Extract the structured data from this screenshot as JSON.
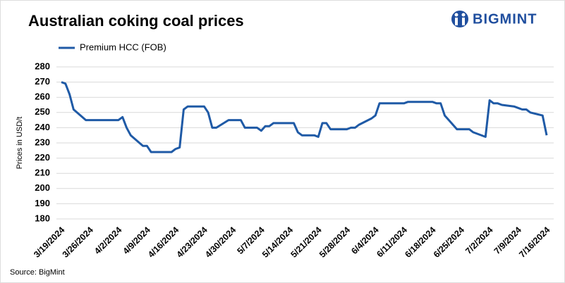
{
  "chart_data": {
    "type": "line",
    "title": "Australian coking coal prices",
    "logo": "BIGMINT",
    "y_label": "Prices in USD/t",
    "source": "Source: BigMint",
    "grid": true,
    "x": [
      "3/19/2024",
      "3/20/2024",
      "3/21/2024",
      "3/22/2024",
      "3/25/2024",
      "3/26/2024",
      "3/27/2024",
      "3/28/2024",
      "3/29/2024",
      "4/1/2024",
      "4/2/2024",
      "4/3/2024",
      "4/4/2024",
      "4/5/2024",
      "4/8/2024",
      "4/9/2024",
      "4/10/2024",
      "4/11/2024",
      "4/12/2024",
      "4/15/2024",
      "4/16/2024",
      "4/17/2024",
      "4/18/2024",
      "4/19/2024",
      "4/22/2024",
      "4/23/2024",
      "4/24/2024",
      "4/25/2024",
      "4/26/2024",
      "4/29/2024",
      "4/30/2024",
      "5/1/2024",
      "5/2/2024",
      "5/3/2024",
      "5/6/2024",
      "5/7/2024",
      "5/8/2024",
      "5/9/2024",
      "5/10/2024",
      "5/13/2024",
      "5/14/2024",
      "5/15/2024",
      "5/16/2024",
      "5/17/2024",
      "5/20/2024",
      "5/21/2024",
      "5/22/2024",
      "5/23/2024",
      "5/24/2024",
      "5/27/2024",
      "5/28/2024",
      "5/29/2024",
      "5/30/2024",
      "5/31/2024",
      "6/3/2024",
      "6/4/2024",
      "6/5/2024",
      "6/6/2024",
      "6/7/2024",
      "6/10/2024",
      "6/11/2024",
      "6/12/2024",
      "6/13/2024",
      "6/14/2024",
      "6/17/2024",
      "6/18/2024",
      "6/19/2024",
      "6/20/2024",
      "6/21/2024",
      "6/24/2024",
      "6/25/2024",
      "6/26/2024",
      "6/27/2024",
      "6/28/2024",
      "7/1/2024",
      "7/2/2024",
      "7/3/2024",
      "7/4/2024",
      "7/5/2024",
      "7/8/2024",
      "7/9/2024",
      "7/10/2024",
      "7/11/2024",
      "7/12/2024",
      "7/15/2024",
      "7/16/2024"
    ],
    "series": [
      {
        "name": "Premium HCC (FOB)",
        "color": "#1f5aa6",
        "values": [
          270,
          269,
          262,
          252,
          245,
          245,
          245,
          245,
          245,
          245,
          245,
          247,
          240,
          235,
          228,
          228,
          224,
          224,
          224,
          224,
          226,
          227,
          252,
          254,
          254,
          254,
          250,
          240,
          240,
          245,
          245,
          245,
          245,
          240,
          240,
          238,
          241,
          241,
          243,
          243,
          243,
          243,
          237,
          235,
          235,
          234,
          243,
          243,
          239,
          239,
          239,
          240,
          240,
          242,
          246,
          248,
          256,
          256,
          256,
          256,
          256,
          257,
          257,
          257,
          257,
          257,
          256,
          256,
          248,
          239,
          239,
          239,
          239,
          237,
          234,
          258,
          256,
          256,
          255,
          254,
          253,
          252,
          252,
          250,
          248,
          235
        ]
      }
    ],
    "xlim": [
      "3/19/2024",
      "7/16/2024"
    ],
    "xticks": [
      "3/19/2024",
      "3/26/2024",
      "4/2/2024",
      "4/9/2024",
      "4/16/2024",
      "4/23/2024",
      "4/30/2024",
      "5/7/2024",
      "5/14/2024",
      "5/21/2024",
      "5/28/2024",
      "6/4/2024",
      "6/11/2024",
      "6/18/2024",
      "6/25/2024",
      "7/2/2024",
      "7/9/2024",
      "7/16/2024"
    ],
    "ylim": [
      180,
      280
    ],
    "yticks": [
      180,
      190,
      200,
      210,
      220,
      230,
      240,
      250,
      260,
      270,
      280
    ]
  }
}
